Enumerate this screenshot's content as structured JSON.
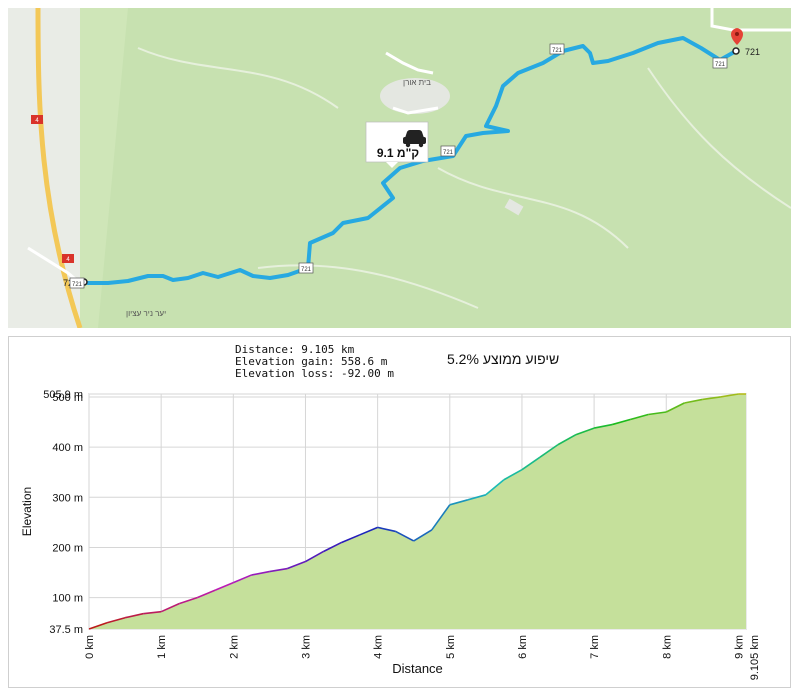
{
  "map": {
    "colors": {
      "land": "#cfe6b8",
      "forest": "#c2deaa",
      "route": "#27a9e1",
      "road": "#f3c857"
    },
    "road_number": "721",
    "highway_number": "4",
    "place_beit_oren": "בית אורן",
    "place_forest": "יער ניר עציון",
    "distance_badge": "9.1 ק\"מ",
    "car_icon": "car-icon",
    "pin_icon": "map-pin-icon"
  },
  "profile": {
    "stats": {
      "distance": "Distance: 9.105 km",
      "gain": "Elevation gain: 558.6 m",
      "loss": "Elevation loss: -92.00 m"
    },
    "grade": "5.2% שיפוע ממוצע"
  },
  "chart_data": {
    "type": "area",
    "xlabel": "Distance",
    "ylabel": "Elevation",
    "xlim": [
      0,
      9.105
    ],
    "ylim": [
      37.5,
      505.9
    ],
    "x_ticks": [
      "0 km",
      "1 km",
      "2 km",
      "3 km",
      "4 km",
      "5 km",
      "6 km",
      "7 km",
      "8 km",
      "9 km",
      "9.105 km"
    ],
    "y_ticks": [
      "505.9 m",
      "500 m",
      "400 m",
      "300 m",
      "200 m",
      "100 m",
      "37.5 m"
    ],
    "grid": true,
    "fill_color": "#c5e09b",
    "x": [
      0,
      0.25,
      0.5,
      0.75,
      1.0,
      1.25,
      1.5,
      1.75,
      2.0,
      2.25,
      2.5,
      2.75,
      3.0,
      3.25,
      3.5,
      3.75,
      4.0,
      4.25,
      4.5,
      4.75,
      5.0,
      5.25,
      5.5,
      5.75,
      6.0,
      6.25,
      6.5,
      6.75,
      7.0,
      7.25,
      7.5,
      7.75,
      8.0,
      8.25,
      8.5,
      8.75,
      9.0,
      9.105
    ],
    "values": [
      37.5,
      50,
      60,
      68,
      72,
      88,
      100,
      115,
      130,
      145,
      152,
      158,
      172,
      192,
      210,
      225,
      240,
      232,
      213,
      235,
      285,
      295,
      305,
      335,
      355,
      380,
      405,
      425,
      438,
      445,
      455,
      465,
      470,
      488,
      495,
      500,
      505.9,
      505.9
    ]
  }
}
